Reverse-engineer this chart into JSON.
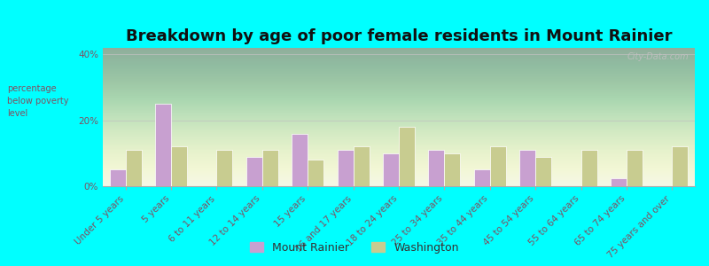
{
  "title": "Breakdown by age of poor female residents in Mount Rainier",
  "ylabel": "percentage\nbelow poverty\nlevel",
  "categories": [
    "Under 5 years",
    "5 years",
    "6 to 11 years",
    "12 to 14 years",
    "15 years",
    "16 and 17 years",
    "18 to 24 years",
    "25 to 34 years",
    "35 to 44 years",
    "45 to 54 years",
    "55 to 64 years",
    "65 to 74 years",
    "75 years and over"
  ],
  "mount_rainier": [
    5.0,
    25.0,
    0.0,
    9.0,
    16.0,
    11.0,
    10.0,
    11.0,
    5.0,
    11.0,
    0.0,
    2.5,
    0.0
  ],
  "washington": [
    11.0,
    12.0,
    11.0,
    11.0,
    8.0,
    12.0,
    18.0,
    10.0,
    12.0,
    9.0,
    11.0,
    11.0,
    12.0
  ],
  "bar_color_mr": "#c8a0d0",
  "bar_color_wa": "#c8cc90",
  "bg_color_outer": "#00ffff",
  "ylim": [
    0,
    42
  ],
  "title_fontsize": 13,
  "tick_fontsize": 7.5,
  "ylabel_fontsize": 7,
  "watermark": "City-Data.com",
  "legend_mr": "Mount Rainier",
  "legend_wa": "Washington"
}
